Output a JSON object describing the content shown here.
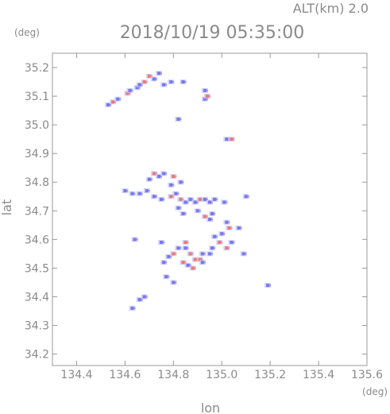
{
  "chart_data": {
    "type": "scatter",
    "title": "2018/10/19 05:35:00",
    "altitude_label": "ALT(km) 2.0",
    "xlabel": "lon",
    "ylabel": "lat",
    "xunit": "(deg)",
    "yunit": "(deg)",
    "xlim": [
      134.3,
      135.6
    ],
    "ylim": [
      34.16,
      35.25
    ],
    "xticks": [
      "134.4",
      "134.6",
      "134.8",
      "135.0",
      "135.2",
      "135.4",
      "135.6"
    ],
    "yticks": [
      "34.2",
      "34.3",
      "34.4",
      "34.5",
      "34.6",
      "34.7",
      "34.8",
      "34.9",
      "35.0",
      "35.1",
      "35.2"
    ],
    "grid": false,
    "colors": {
      "positive": "#ee7777",
      "negative": "#7777ee",
      "light": "#c8c8f4",
      "frame": "#999999"
    },
    "series": [
      {
        "points": [
          [
            134.53,
            35.07,
            "n"
          ],
          [
            134.55,
            35.08,
            "p"
          ],
          [
            134.57,
            35.09,
            "n"
          ],
          [
            134.61,
            35.11,
            "p"
          ],
          [
            134.65,
            35.13,
            "n"
          ],
          [
            134.68,
            35.15,
            "p"
          ],
          [
            134.7,
            35.17,
            "p"
          ],
          [
            134.72,
            35.16,
            "n"
          ],
          [
            134.74,
            35.18,
            "n"
          ],
          [
            134.76,
            35.14,
            "n"
          ],
          [
            134.66,
            35.14,
            "n"
          ],
          [
            134.62,
            35.12,
            "n"
          ],
          [
            134.79,
            35.15,
            "n"
          ],
          [
            134.84,
            35.15,
            "n"
          ],
          [
            134.93,
            35.12,
            "n"
          ],
          [
            134.93,
            35.09,
            "n"
          ],
          [
            134.94,
            35.1,
            "p"
          ],
          [
            134.82,
            35.02,
            "n"
          ],
          [
            135.02,
            34.95,
            "n"
          ],
          [
            135.04,
            34.95,
            "p"
          ],
          [
            134.7,
            34.81,
            "n"
          ],
          [
            134.72,
            34.83,
            "p"
          ],
          [
            134.74,
            34.82,
            "n"
          ],
          [
            134.76,
            34.83,
            "n"
          ],
          [
            134.8,
            34.82,
            "p"
          ],
          [
            134.79,
            34.79,
            "n"
          ],
          [
            134.83,
            34.8,
            "n"
          ],
          [
            134.6,
            34.77,
            "n"
          ],
          [
            134.63,
            34.76,
            "n"
          ],
          [
            134.66,
            34.76,
            "n"
          ],
          [
            134.69,
            34.77,
            "n"
          ],
          [
            134.72,
            34.75,
            "n"
          ],
          [
            134.75,
            34.74,
            "n"
          ],
          [
            134.79,
            34.75,
            "p"
          ],
          [
            134.81,
            34.76,
            "n"
          ],
          [
            134.83,
            34.74,
            "p"
          ],
          [
            134.82,
            34.71,
            "n"
          ],
          [
            134.85,
            34.73,
            "n"
          ],
          [
            134.87,
            34.74,
            "n"
          ],
          [
            134.89,
            34.73,
            "n"
          ],
          [
            134.91,
            34.74,
            "p"
          ],
          [
            134.93,
            34.74,
            "n"
          ],
          [
            134.95,
            34.73,
            "n"
          ],
          [
            134.97,
            34.74,
            "n"
          ],
          [
            135.01,
            34.73,
            "n"
          ],
          [
            134.84,
            34.69,
            "n"
          ],
          [
            134.9,
            34.7,
            "n"
          ],
          [
            134.93,
            34.68,
            "p"
          ],
          [
            134.95,
            34.67,
            "n"
          ],
          [
            134.96,
            34.69,
            "n"
          ],
          [
            135.02,
            34.66,
            "n"
          ],
          [
            135.03,
            34.64,
            "p"
          ],
          [
            135.0,
            34.62,
            "n"
          ],
          [
            134.97,
            34.61,
            "n"
          ],
          [
            134.99,
            34.59,
            "p"
          ],
          [
            135.04,
            34.59,
            "n"
          ],
          [
            135.09,
            34.55,
            "n"
          ],
          [
            135.1,
            34.75,
            "n"
          ],
          [
            134.76,
            34.52,
            "n"
          ],
          [
            134.78,
            34.54,
            "n"
          ],
          [
            134.8,
            34.55,
            "p"
          ],
          [
            134.82,
            34.57,
            "n"
          ],
          [
            134.85,
            34.57,
            "n"
          ],
          [
            134.87,
            34.55,
            "p"
          ],
          [
            134.89,
            34.53,
            "p"
          ],
          [
            134.91,
            34.53,
            "p"
          ],
          [
            134.92,
            34.52,
            "n"
          ],
          [
            134.88,
            34.5,
            "p"
          ],
          [
            134.86,
            34.51,
            "n"
          ],
          [
            134.84,
            34.52,
            "p"
          ],
          [
            134.92,
            34.55,
            "n"
          ],
          [
            134.95,
            34.55,
            "n"
          ],
          [
            134.75,
            34.59,
            "n"
          ],
          [
            134.85,
            34.59,
            "p"
          ],
          [
            134.8,
            34.45,
            "n"
          ],
          [
            134.66,
            34.39,
            "n"
          ],
          [
            134.68,
            34.4,
            "n"
          ],
          [
            134.63,
            34.36,
            "n"
          ],
          [
            135.19,
            34.44,
            "n"
          ],
          [
            134.64,
            34.6,
            "n"
          ],
          [
            134.77,
            34.47,
            "n"
          ],
          [
            135.07,
            34.64,
            "n"
          ],
          [
            135.02,
            34.57,
            "p"
          ],
          [
            134.96,
            34.57,
            "n"
          ]
        ]
      }
    ]
  }
}
